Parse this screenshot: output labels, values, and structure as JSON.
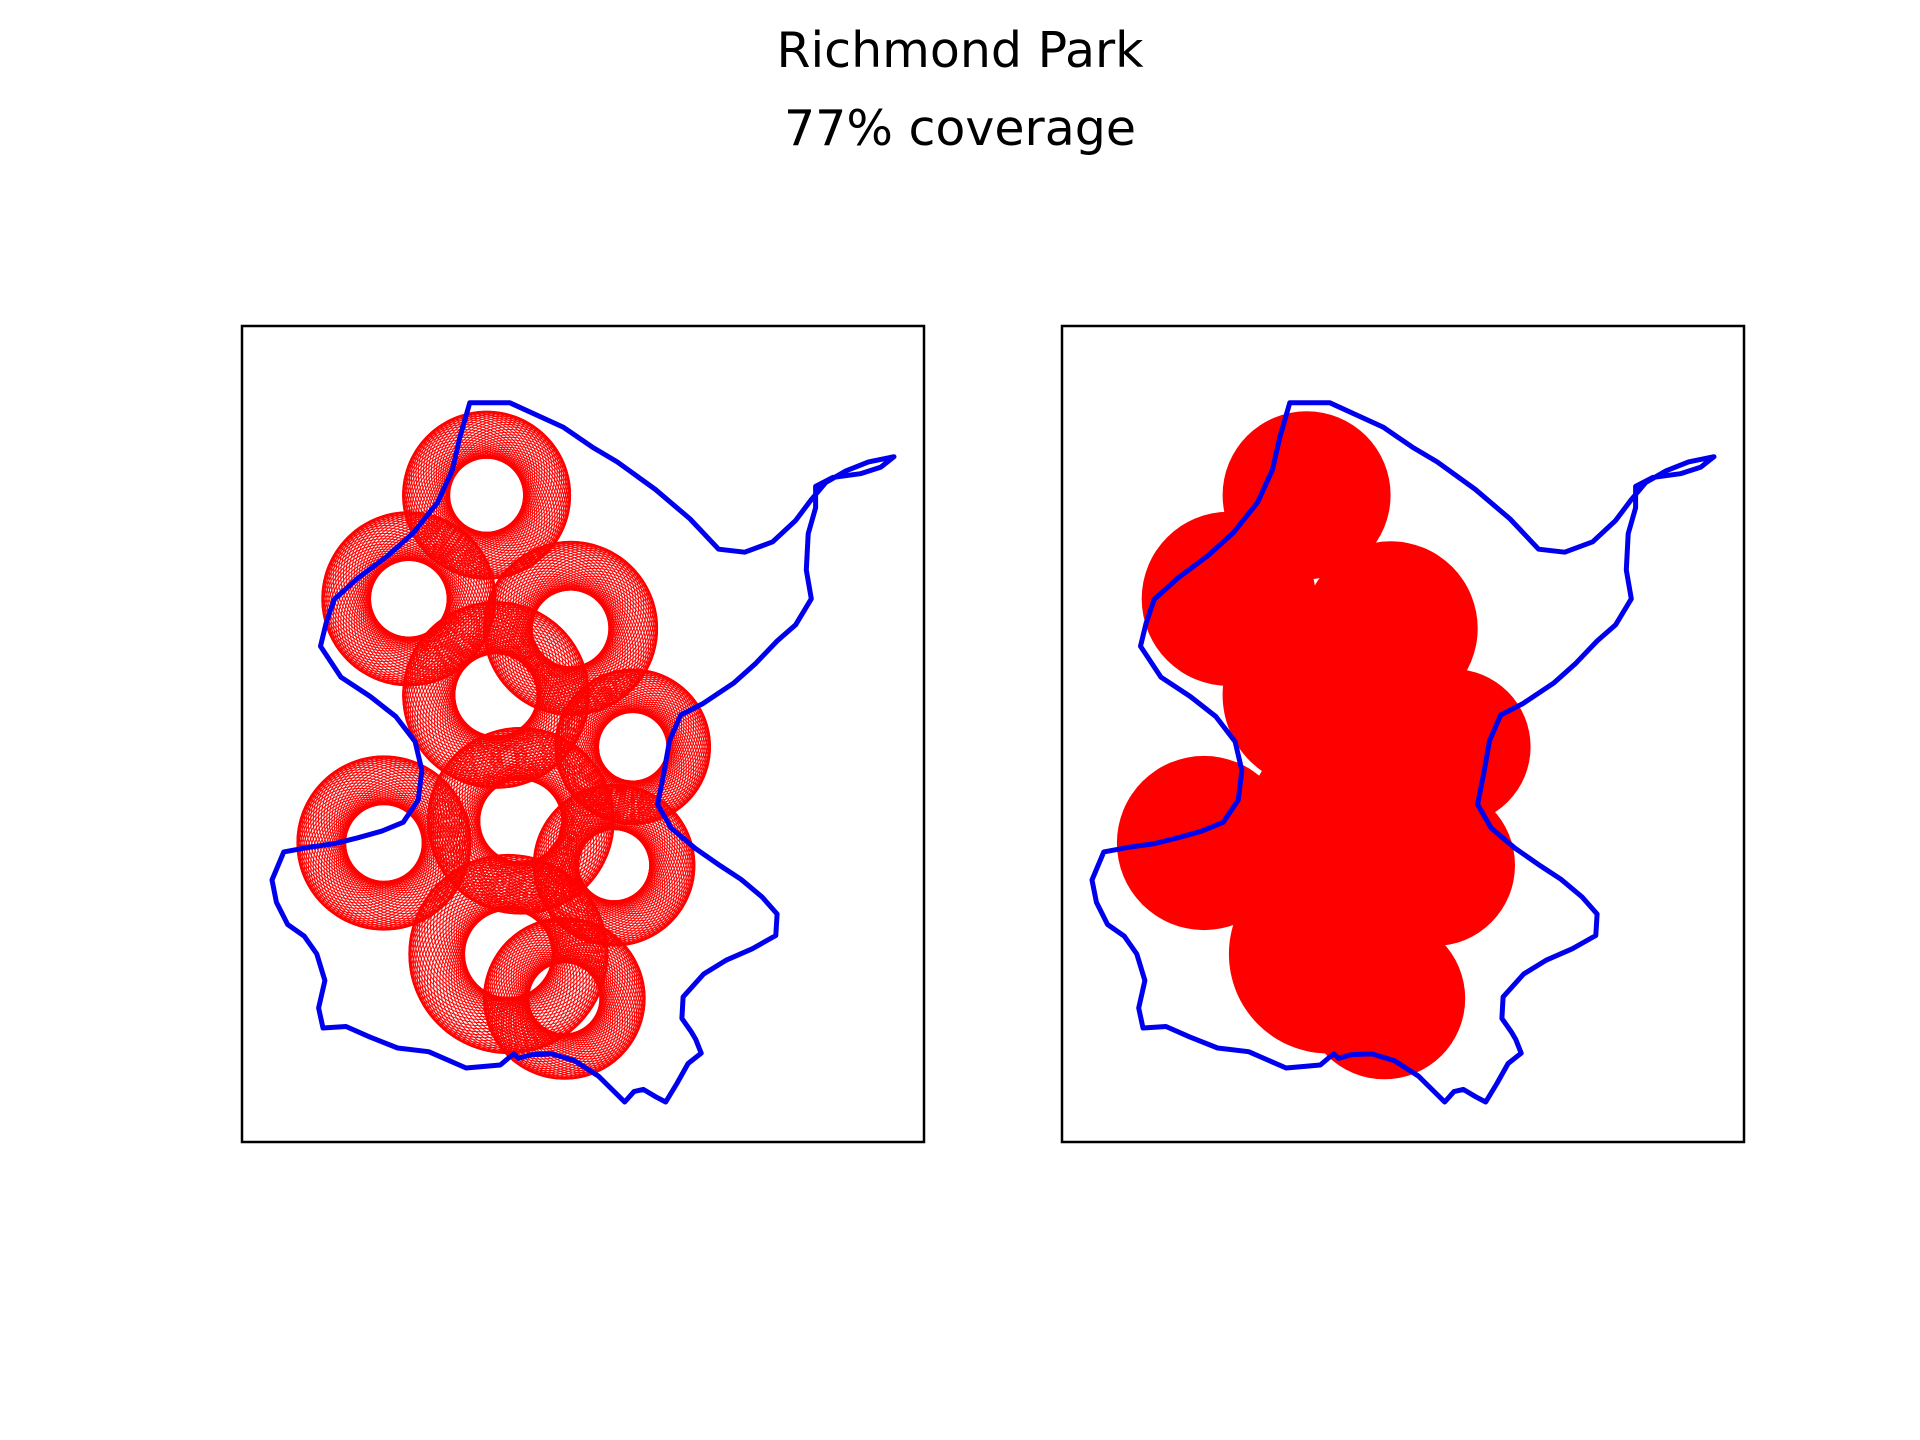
{
  "title": "Richmond Park",
  "subtitle": "77% coverage",
  "colors": {
    "boundary": "#0000ee",
    "coverage": "#ff0000",
    "frame": "#000000",
    "background": "#ffffff"
  },
  "chart_data": {
    "type": "map",
    "title": "Richmond Park",
    "subtitle": "77% coverage",
    "coverage_percent": 77,
    "panels": [
      {
        "style": "circle-outlines",
        "xticks": [],
        "yticks": []
      },
      {
        "style": "filled-union",
        "xticks": [],
        "yticks": []
      }
    ],
    "boundary": [
      [
        0.318,
        0.055
      ],
      [
        0.382,
        0.055
      ],
      [
        0.468,
        0.088
      ],
      [
        0.515,
        0.115
      ],
      [
        0.555,
        0.135
      ],
      [
        0.616,
        0.172
      ],
      [
        0.672,
        0.212
      ],
      [
        0.718,
        0.253
      ],
      [
        0.76,
        0.257
      ],
      [
        0.805,
        0.243
      ],
      [
        0.842,
        0.214
      ],
      [
        0.866,
        0.187
      ],
      [
        0.89,
        0.163
      ],
      [
        0.923,
        0.147
      ],
      [
        0.959,
        0.135
      ],
      [
        1.0,
        0.128
      ],
      [
        0.979,
        0.142
      ],
      [
        0.946,
        0.151
      ],
      [
        0.902,
        0.156
      ],
      [
        0.874,
        0.168
      ],
      [
        0.874,
        0.197
      ],
      [
        0.862,
        0.232
      ],
      [
        0.859,
        0.281
      ],
      [
        0.867,
        0.32
      ],
      [
        0.842,
        0.355
      ],
      [
        0.812,
        0.377
      ],
      [
        0.778,
        0.407
      ],
      [
        0.742,
        0.434
      ],
      [
        0.692,
        0.462
      ],
      [
        0.657,
        0.477
      ],
      [
        0.639,
        0.512
      ],
      [
        0.63,
        0.555
      ],
      [
        0.62,
        0.598
      ],
      [
        0.642,
        0.63
      ],
      [
        0.68,
        0.657
      ],
      [
        0.721,
        0.681
      ],
      [
        0.754,
        0.699
      ],
      [
        0.788,
        0.723
      ],
      [
        0.812,
        0.746
      ],
      [
        0.81,
        0.775
      ],
      [
        0.772,
        0.793
      ],
      [
        0.731,
        0.808
      ],
      [
        0.694,
        0.827
      ],
      [
        0.661,
        0.858
      ],
      [
        0.659,
        0.887
      ],
      [
        0.674,
        0.905
      ],
      [
        0.681,
        0.915
      ],
      [
        0.69,
        0.934
      ],
      [
        0.669,
        0.948
      ],
      [
        0.651,
        0.975
      ],
      [
        0.633,
        1.0
      ],
      [
        0.617,
        0.993
      ],
      [
        0.597,
        0.983
      ],
      [
        0.582,
        0.986
      ],
      [
        0.567,
        1.0
      ],
      [
        0.525,
        0.965
      ],
      [
        0.486,
        0.944
      ],
      [
        0.45,
        0.935
      ],
      [
        0.418,
        0.936
      ],
      [
        0.396,
        0.941
      ],
      [
        0.389,
        0.935
      ],
      [
        0.381,
        0.94
      ],
      [
        0.367,
        0.95
      ],
      [
        0.312,
        0.954
      ],
      [
        0.252,
        0.932
      ],
      [
        0.202,
        0.927
      ],
      [
        0.157,
        0.912
      ],
      [
        0.119,
        0.898
      ],
      [
        0.082,
        0.9
      ],
      [
        0.075,
        0.873
      ],
      [
        0.085,
        0.836
      ],
      [
        0.072,
        0.8
      ],
      [
        0.052,
        0.776
      ],
      [
        0.025,
        0.76
      ],
      [
        0.007,
        0.73
      ],
      [
        0.0,
        0.7
      ],
      [
        0.019,
        0.662
      ],
      [
        0.058,
        0.656
      ],
      [
        0.1,
        0.651
      ],
      [
        0.138,
        0.643
      ],
      [
        0.176,
        0.634
      ],
      [
        0.211,
        0.622
      ],
      [
        0.235,
        0.592
      ],
      [
        0.241,
        0.552
      ],
      [
        0.23,
        0.513
      ],
      [
        0.199,
        0.479
      ],
      [
        0.158,
        0.452
      ],
      [
        0.111,
        0.426
      ],
      [
        0.078,
        0.384
      ],
      [
        0.087,
        0.353
      ],
      [
        0.1,
        0.321
      ],
      [
        0.138,
        0.292
      ],
      [
        0.186,
        0.262
      ],
      [
        0.227,
        0.231
      ],
      [
        0.266,
        0.19
      ],
      [
        0.29,
        0.146
      ],
      [
        0.302,
        0.102
      ],
      [
        0.318,
        0.055
      ]
    ],
    "circles": [
      {
        "cx": 0.345,
        "cy": 0.18,
        "r": 0.135
      },
      {
        "cx": 0.22,
        "cy": 0.32,
        "r": 0.14
      },
      {
        "cx": 0.48,
        "cy": 0.36,
        "r": 0.14
      },
      {
        "cx": 0.36,
        "cy": 0.45,
        "r": 0.15
      },
      {
        "cx": 0.58,
        "cy": 0.52,
        "r": 0.125
      },
      {
        "cx": 0.18,
        "cy": 0.65,
        "r": 0.14
      },
      {
        "cx": 0.4,
        "cy": 0.62,
        "r": 0.15
      },
      {
        "cx": 0.55,
        "cy": 0.68,
        "r": 0.13
      },
      {
        "cx": 0.38,
        "cy": 0.8,
        "r": 0.16
      },
      {
        "cx": 0.47,
        "cy": 0.86,
        "r": 0.13
      }
    ]
  }
}
